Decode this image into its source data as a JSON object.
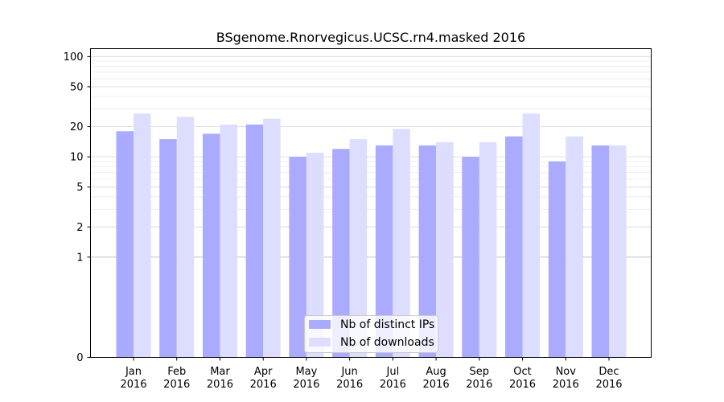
{
  "chart_data": {
    "type": "bar",
    "title": "BSgenome.Rnorvegicus.UCSC.rn4.masked 2016",
    "xlabel": "",
    "ylabel": "",
    "scale": "symlog",
    "ylim": [
      0,
      120
    ],
    "yticks": [
      0,
      1,
      2,
      5,
      10,
      20,
      50,
      100
    ],
    "ytick_labels": [
      "0",
      "1",
      "2",
      "5",
      "10",
      "20",
      "50",
      "100"
    ],
    "categories": [
      "Jan\n2016",
      "Feb\n2016",
      "Mar\n2016",
      "Apr\n2016",
      "May\n2016",
      "Jun\n2016",
      "Jul\n2016",
      "Aug\n2016",
      "Sep\n2016",
      "Oct\n2016",
      "Nov\n2016",
      "Dec\n2016"
    ],
    "category_months": [
      "Jan",
      "Feb",
      "Mar",
      "Apr",
      "May",
      "Jun",
      "Jul",
      "Aug",
      "Sep",
      "Oct",
      "Nov",
      "Dec"
    ],
    "category_years": [
      "2016",
      "2016",
      "2016",
      "2016",
      "2016",
      "2016",
      "2016",
      "2016",
      "2016",
      "2016",
      "2016",
      "2016"
    ],
    "series": [
      {
        "name": "Nb of distinct IPs",
        "color": "#aaaaff",
        "values": [
          18,
          15,
          17,
          21,
          10,
          12,
          13,
          13,
          10,
          16,
          9,
          13
        ]
      },
      {
        "name": "Nb of downloads",
        "color": "#ddddff",
        "values": [
          27,
          25,
          21,
          24,
          11,
          15,
          19,
          14,
          14,
          27,
          16,
          13
        ]
      }
    ],
    "grid": true,
    "legend_position": "bottom-center"
  }
}
